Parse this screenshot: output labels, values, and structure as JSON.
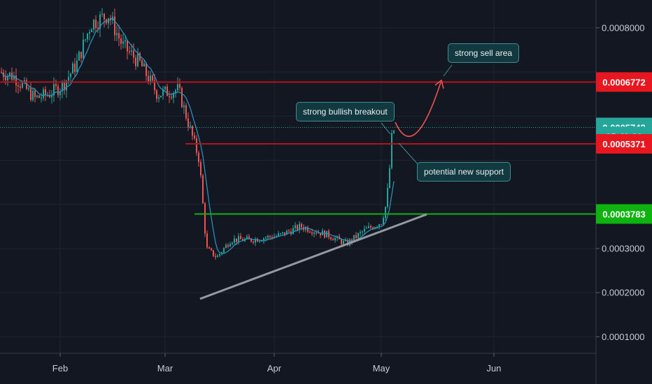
{
  "chart_data": {
    "type": "candlestick",
    "x_ticks": [
      "Feb",
      "Mar",
      "Apr",
      "May",
      "Jun"
    ],
    "y_ticks": [
      "0.0001000",
      "0.0002000",
      "0.0003000",
      "0.0008000"
    ],
    "y_range": [
      8e-05,
      0.00087
    ],
    "price_tags": [
      {
        "label": "0.0006772",
        "value": 0.0006772,
        "color": "#e8161e"
      },
      {
        "label": "0.0005743",
        "value": 0.0005743,
        "color": "#26a69a"
      },
      {
        "label": "05:49:39",
        "value": 0.000554,
        "color": "#26a69a"
      },
      {
        "label": "0.0005371",
        "value": 0.0005371,
        "color": "#e8161e"
      },
      {
        "label": "0.0003783",
        "value": 0.0003783,
        "color": "#0fb30f"
      }
    ],
    "levels": [
      {
        "name": "resistance",
        "value": 0.0006772,
        "color": "#b3141b"
      },
      {
        "name": "current-price",
        "value": 0.0005743,
        "color": "#26a69a"
      },
      {
        "name": "new-support",
        "value": 0.0005371,
        "color": "#b3141b"
      },
      {
        "name": "breakout-level",
        "value": 0.0003783,
        "color": "#0fb30f"
      }
    ],
    "annotations": [
      {
        "text": "strong sell area"
      },
      {
        "text": "strong bullish breakout"
      },
      {
        "text": "potential new support"
      }
    ],
    "colors": {
      "up": "#26a69a",
      "down": "#ef5350",
      "ma": "#2a8fb8",
      "trendline": "#9598a1"
    }
  }
}
